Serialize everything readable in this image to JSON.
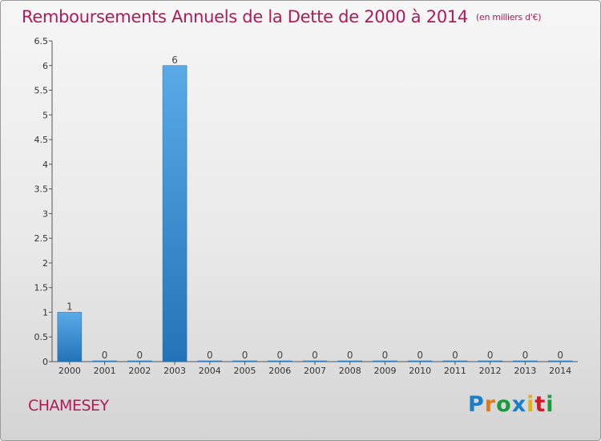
{
  "chart_data": {
    "type": "bar",
    "title": "Remboursements Annuels de la Dette de 2000 à 2014",
    "unit_label": "(en milliers d'€)",
    "categories": [
      "2000",
      "2001",
      "2002",
      "2003",
      "2004",
      "2005",
      "2006",
      "2007",
      "2008",
      "2009",
      "2010",
      "2011",
      "2012",
      "2013",
      "2014"
    ],
    "values": [
      1,
      0,
      0,
      6,
      0,
      0,
      0,
      0,
      0,
      0,
      0,
      0,
      0,
      0,
      0
    ],
    "ylim": [
      0,
      6.5
    ],
    "yticks": [
      "0",
      "0.5",
      "1",
      "1.5",
      "2",
      "2.5",
      "3",
      "3.5",
      "4",
      "4.5",
      "5",
      "5.5",
      "6",
      "6.5"
    ],
    "bar_color": "#3a8fd6"
  },
  "commune": "CHAMESEY",
  "logo": {
    "letters": [
      "P",
      "r",
      "o",
      "x",
      "i",
      "t",
      "i"
    ],
    "colors": [
      "#1a7fc8",
      "#e07a1a",
      "#1a9a3a",
      "#1a7fc8",
      "#e0b01a",
      "#d01a2a",
      "#1a9a3a"
    ]
  }
}
